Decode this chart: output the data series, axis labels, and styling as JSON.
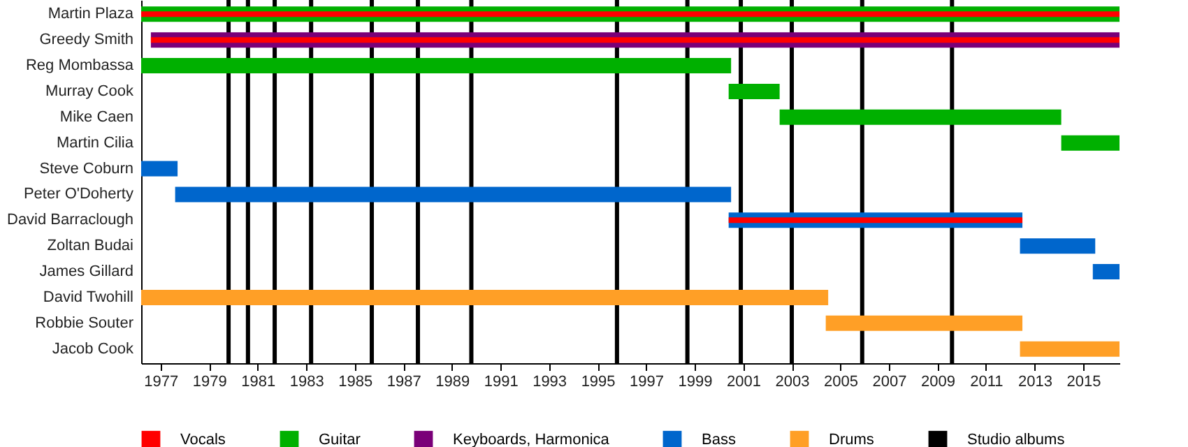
{
  "chart_data": {
    "type": "bar",
    "orientation": "horizontal",
    "legend": "bottom",
    "categories": [
      "Martin Plaza",
      "Greedy Smith",
      "Reg Mombassa",
      "Murray Cook",
      "Mike Caen",
      "Martin Cilia",
      "Steve Coburn",
      "Peter O'Doherty",
      "David Barraclough",
      "Zoltan Budai",
      "James Gillard",
      "David Twohill",
      "Robbie Souter",
      "Jacob Cook"
    ],
    "series": [
      {
        "name": "Vocals",
        "color": "#ff0000",
        "values": [
          40.3,
          39.9,
          null,
          null,
          null,
          null,
          null,
          null,
          12.1,
          null,
          null,
          null,
          null,
          null
        ],
        "base": [
          1976.2,
          1976.6,
          null,
          null,
          null,
          null,
          null,
          null,
          2000.4,
          null,
          null,
          null,
          null,
          null
        ]
      },
      {
        "name": "Guitar",
        "color": "#00b000",
        "values": [
          40.3,
          null,
          24.3,
          2.1,
          11.6,
          2.4,
          null,
          null,
          null,
          null,
          null,
          null,
          null,
          null
        ],
        "base": [
          1976.2,
          null,
          1976.2,
          2000.4,
          2002.5,
          2014.1,
          null,
          null,
          null,
          null,
          null,
          null,
          null,
          null
        ]
      },
      {
        "name": "Keyboards, Harmonica",
        "color": "#7a0078",
        "values": [
          null,
          39.9,
          null,
          null,
          null,
          null,
          null,
          null,
          null,
          null,
          null,
          null,
          null,
          null
        ],
        "base": [
          null,
          1976.6,
          null,
          null,
          null,
          null,
          null,
          null,
          null,
          null,
          null,
          null,
          null,
          null
        ]
      },
      {
        "name": "Bass",
        "color": "#0066cc",
        "values": [
          null,
          null,
          null,
          null,
          null,
          null,
          1.5,
          22.9,
          12.1,
          3.1,
          1.1,
          null,
          null,
          null
        ],
        "base": [
          null,
          null,
          null,
          null,
          null,
          null,
          1976.2,
          1977.6,
          2000.4,
          2012.4,
          2015.4,
          null,
          null,
          null
        ]
      },
      {
        "name": "Drums",
        "color": "#ff9f26",
        "values": [
          null,
          null,
          null,
          null,
          null,
          null,
          null,
          null,
          null,
          null,
          null,
          28.3,
          8.1,
          4.1
        ],
        "base": [
          null,
          null,
          null,
          null,
          null,
          null,
          null,
          null,
          null,
          null,
          null,
          1976.2,
          2004.4,
          2012.4
        ]
      }
    ],
    "xlim": [
      1976.2,
      2016.5
    ],
    "xticks": [
      1977,
      1979,
      1981,
      1983,
      1985,
      1987,
      1989,
      1991,
      1993,
      1995,
      1997,
      1999,
      2001,
      2003,
      2005,
      2007,
      2009,
      2011,
      2013,
      2015
    ],
    "ref_lines": [
      {
        "axis": "x",
        "value": 1979.8,
        "label": "Studio albums",
        "color": "#000000"
      },
      {
        "axis": "x",
        "value": 1980.6,
        "color": "#000000"
      },
      {
        "axis": "x",
        "value": 1981.7,
        "color": "#000000"
      },
      {
        "axis": "x",
        "value": 1983.2,
        "color": "#000000"
      },
      {
        "axis": "x",
        "value": 1985.7,
        "color": "#000000"
      },
      {
        "axis": "x",
        "value": 1987.6,
        "color": "#000000"
      },
      {
        "axis": "x",
        "value": 1989.8,
        "color": "#000000"
      },
      {
        "axis": "x",
        "value": 1995.8,
        "color": "#000000"
      },
      {
        "axis": "x",
        "value": 1998.7,
        "color": "#000000"
      },
      {
        "axis": "x",
        "value": 2000.9,
        "color": "#000000"
      },
      {
        "axis": "x",
        "value": 2003.0,
        "color": "#000000"
      },
      {
        "axis": "x",
        "value": 2005.9,
        "color": "#000000"
      },
      {
        "axis": "x",
        "value": 2009.6,
        "color": "#000000"
      }
    ]
  }
}
